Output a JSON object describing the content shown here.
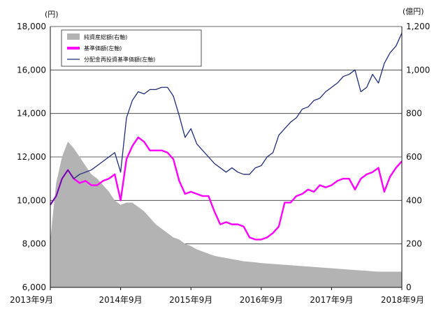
{
  "chart_data": {
    "type": "line",
    "title": "",
    "left_axis": {
      "unit": "(円)",
      "ylim": [
        6000,
        18000
      ],
      "ticks": [
        "6,000",
        "8,000",
        "10,000",
        "12,000",
        "14,000",
        "16,000",
        "18,000"
      ],
      "tick_values": [
        6000,
        8000,
        10000,
        12000,
        14000,
        16000,
        18000
      ]
    },
    "right_axis": {
      "unit": "(億円)",
      "ylim": [
        0,
        1200
      ],
      "ticks": [
        "0",
        "200",
        "400",
        "600",
        "800",
        "1,000",
        "1,200"
      ],
      "tick_values": [
        0,
        200,
        400,
        600,
        800,
        1000,
        1200
      ]
    },
    "x_axis": {
      "range": [
        "2013-09",
        "2018-09"
      ],
      "ticks": [
        "2013年9月",
        "2014年9月",
        "2015年9月",
        "2016年9月",
        "2017年9月",
        "2018年9月"
      ],
      "tick_values": [
        "2013-09",
        "2014-09",
        "2015-09",
        "2016-09",
        "2017-09",
        "2018-09"
      ]
    },
    "grid": "horizontal",
    "legend_placement": "top-left",
    "x": [
      "2013-09",
      "2013-10",
      "2013-11",
      "2013-12",
      "2014-01",
      "2014-02",
      "2014-03",
      "2014-04",
      "2014-05",
      "2014-06",
      "2014-07",
      "2014-08",
      "2014-09",
      "2014-10",
      "2014-11",
      "2014-12",
      "2015-01",
      "2015-02",
      "2015-03",
      "2015-04",
      "2015-05",
      "2015-06",
      "2015-07",
      "2015-08",
      "2015-09",
      "2015-10",
      "2015-11",
      "2015-12",
      "2016-01",
      "2016-02",
      "2016-03",
      "2016-04",
      "2016-05",
      "2016-06",
      "2016-07",
      "2016-08",
      "2016-09",
      "2016-10",
      "2016-11",
      "2016-12",
      "2017-01",
      "2017-02",
      "2017-03",
      "2017-04",
      "2017-05",
      "2017-06",
      "2017-07",
      "2017-08",
      "2017-09",
      "2017-10",
      "2017-11",
      "2017-12",
      "2018-01",
      "2018-02",
      "2018-03",
      "2018-04",
      "2018-05",
      "2018-06",
      "2018-07",
      "2018-08",
      "2018-09"
    ],
    "series": [
      {
        "name": "純資産総額(右軸)",
        "axis": "right",
        "style": "area",
        "color": "#b3b3b3",
        "values": [
          220,
          480,
          600,
          670,
          640,
          600,
          560,
          520,
          500,
          470,
          440,
          400,
          380,
          390,
          390,
          370,
          350,
          320,
          290,
          270,
          250,
          230,
          220,
          200,
          190,
          175,
          165,
          155,
          145,
          140,
          135,
          130,
          125,
          120,
          118,
          115,
          112,
          110,
          108,
          106,
          104,
          102,
          100,
          98,
          96,
          94,
          92,
          90,
          88,
          86,
          84,
          82,
          80,
          78,
          76,
          74,
          72,
          72,
          72,
          72,
          72
        ]
      },
      {
        "name": "基準価額(左軸)",
        "axis": "left",
        "style": "line",
        "color": "#ff00ff",
        "values": [
          9800,
          10200,
          11000,
          11400,
          11000,
          10800,
          10900,
          10700,
          10700,
          10900,
          11000,
          11200,
          10000,
          11900,
          12500,
          12900,
          12700,
          12300,
          12300,
          12300,
          12200,
          11900,
          10900,
          10300,
          10400,
          10300,
          10200,
          10200,
          9500,
          8900,
          9000,
          8900,
          8900,
          8800,
          8300,
          8200,
          8200,
          8300,
          8500,
          8800,
          9900,
          9900,
          10200,
          10300,
          10500,
          10400,
          10700,
          10600,
          10700,
          10900,
          11000,
          11000,
          10500,
          11000,
          11200,
          11300,
          11500,
          10400,
          11100,
          11500,
          11800
        ]
      },
      {
        "name": "分配金再投資基準価額(左軸)",
        "axis": "left",
        "style": "line",
        "color": "#1f2d7a",
        "values": [
          9800,
          10200,
          11000,
          11400,
          11000,
          11200,
          11300,
          11400,
          11600,
          11800,
          12000,
          12200,
          11300,
          13800,
          14600,
          15000,
          14900,
          15100,
          15100,
          15200,
          15200,
          14800,
          13900,
          12900,
          13300,
          12600,
          12300,
          12000,
          11700,
          11500,
          11300,
          11500,
          11300,
          11200,
          11200,
          11500,
          11600,
          12000,
          12200,
          13000,
          13300,
          13600,
          13800,
          14200,
          14300,
          14600,
          14700,
          15000,
          15200,
          15400,
          15700,
          15800,
          16000,
          15000,
          15200,
          15800,
          15400,
          16300,
          16800,
          17100,
          17700
        ]
      }
    ]
  }
}
